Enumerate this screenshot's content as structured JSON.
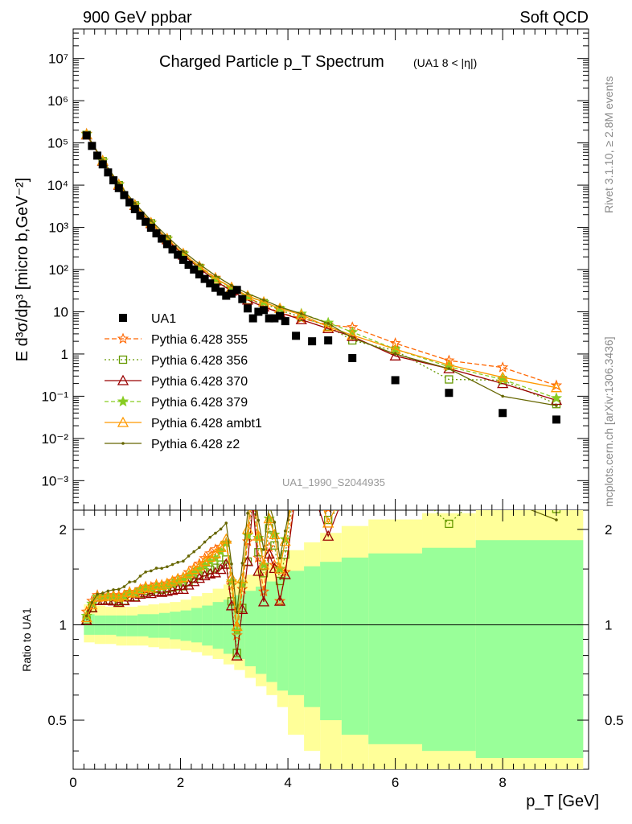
{
  "header": {
    "left": "900 GeV ppbar",
    "right": "Soft QCD"
  },
  "side_labels": {
    "rivet": "Rivet 3.1.10, ≥ 2.8M events",
    "mcplots": "mcplots.cern.ch [arXiv:1306.3436]"
  },
  "chart_data": {
    "type": "scatter",
    "title": "Charged Particle p_T Spectrum",
    "title_qualifier": "(UA1   8 < |η|)",
    "analysis_id": "UA1_1990_S2044935",
    "xlabel": "p_T [GeV]",
    "ylabel": "E d³σ/dp³ [micro b,GeV⁻²]",
    "ratio_ylabel": "Ratio to UA1",
    "xlim": [
      0,
      9.6
    ],
    "ylim": [
      0.0002,
      50000000
    ],
    "y_log": true,
    "ratio_ylim": [
      0.35,
      2.3
    ],
    "ratio_y_log": true,
    "x_ticks": [
      "0",
      "2",
      "4",
      "6",
      "8"
    ],
    "y_ticks": [
      "10⁻³",
      "10⁻²",
      "10⁻¹",
      "1",
      "10",
      "10²",
      "10³",
      "10⁴",
      "10⁵",
      "10⁶",
      "10⁷"
    ],
    "ratio_ticks": [
      "0.5",
      "1",
      "2"
    ],
    "legend_position": "left",
    "data": {
      "name": "UA1",
      "color": "#000000",
      "x": [
        0.25,
        0.35,
        0.45,
        0.55,
        0.65,
        0.75,
        0.85,
        0.95,
        1.05,
        1.15,
        1.25,
        1.35,
        1.45,
        1.55,
        1.65,
        1.75,
        1.85,
        1.95,
        2.05,
        2.15,
        2.25,
        2.35,
        2.45,
        2.55,
        2.65,
        2.75,
        2.85,
        2.95,
        3.05,
        3.15,
        3.25,
        3.35,
        3.45,
        3.55,
        3.65,
        3.75,
        3.85,
        3.95,
        4.15,
        4.45,
        4.75,
        5.2,
        6.0,
        7.0,
        8.0,
        9.0
      ],
      "y": [
        150000,
        85000,
        50000,
        31000,
        20000,
        13000,
        8500,
        5800,
        3900,
        2700,
        1900,
        1350,
        980,
        720,
        540,
        400,
        300,
        225,
        170,
        130,
        100,
        77,
        60,
        47,
        37,
        30,
        24,
        27,
        33,
        20,
        12,
        7,
        10,
        11,
        7,
        7,
        8,
        6,
        2.7,
        2.0,
        2.1,
        0.8,
        0.24,
        0.12,
        0.04,
        0.028
      ]
    },
    "band_x": [
      0.2,
      0.4,
      0.6,
      0.8,
      1.0,
      1.2,
      1.4,
      1.6,
      1.8,
      2.0,
      2.2,
      2.4,
      2.6,
      2.8,
      3.0,
      3.2,
      3.4,
      3.6,
      3.8,
      4.0,
      4.3,
      4.6,
      5.0,
      5.5,
      6.5,
      7.5,
      9.5
    ],
    "band_yellow": [
      [
        0.88,
        1.16
      ],
      [
        0.87,
        1.15
      ],
      [
        0.87,
        1.14
      ],
      [
        0.86,
        1.14
      ],
      [
        0.86,
        1.14
      ],
      [
        0.86,
        1.15
      ],
      [
        0.85,
        1.16
      ],
      [
        0.84,
        1.17
      ],
      [
        0.84,
        1.18
      ],
      [
        0.83,
        1.2
      ],
      [
        0.82,
        1.23
      ],
      [
        0.8,
        1.26
      ],
      [
        0.78,
        1.3
      ],
      [
        0.75,
        1.34
      ],
      [
        0.72,
        1.38
      ],
      [
        0.68,
        1.44
      ],
      [
        0.64,
        1.5
      ],
      [
        0.6,
        1.56
      ],
      [
        0.55,
        1.62
      ],
      [
        0.45,
        1.72
      ],
      [
        0.4,
        1.82
      ],
      [
        0.35,
        1.95
      ],
      [
        0.35,
        2.05
      ],
      [
        0.35,
        2.15
      ],
      [
        0.35,
        2.25
      ],
      [
        0.35,
        2.3
      ]
    ],
    "band_green": [
      [
        0.93,
        1.08
      ],
      [
        0.93,
        1.07
      ],
      [
        0.93,
        1.07
      ],
      [
        0.92,
        1.07
      ],
      [
        0.92,
        1.07
      ],
      [
        0.92,
        1.08
      ],
      [
        0.91,
        1.08
      ],
      [
        0.91,
        1.09
      ],
      [
        0.9,
        1.1
      ],
      [
        0.89,
        1.11
      ],
      [
        0.88,
        1.13
      ],
      [
        0.86,
        1.15
      ],
      [
        0.84,
        1.18
      ],
      [
        0.81,
        1.2
      ],
      [
        0.78,
        1.24
      ],
      [
        0.74,
        1.28
      ],
      [
        0.7,
        1.32
      ],
      [
        0.66,
        1.37
      ],
      [
        0.62,
        1.42
      ],
      [
        0.6,
        1.48
      ],
      [
        0.55,
        1.53
      ],
      [
        0.5,
        1.58
      ],
      [
        0.45,
        1.63
      ],
      [
        0.42,
        1.68
      ],
      [
        0.4,
        1.75
      ],
      [
        0.38,
        1.85
      ]
    ],
    "series": [
      {
        "name": "Pythia 6.428 355",
        "color": "#ff6600",
        "marker": "star",
        "dash": "6,3",
        "x": [
          0.25,
          0.55,
          0.85,
          1.15,
          1.45,
          1.75,
          2.05,
          2.35,
          2.65,
          2.95,
          3.25,
          3.55,
          3.85,
          4.25,
          4.75,
          5.2,
          6.0,
          7.0,
          8.0,
          9.0
        ],
        "y": [
          165000,
          38000,
          10500,
          3400,
          1290,
          540,
          240,
          120,
          64,
          36,
          22,
          14,
          9.5,
          7,
          4.9,
          4.3,
          1.8,
          0.7,
          0.48,
          0.18
        ]
      },
      {
        "name": "Pythia 6.428 356",
        "color": "#669900",
        "marker": "square-open",
        "dash": "2,3",
        "x": [
          0.25,
          0.55,
          0.85,
          1.15,
          1.45,
          1.75,
          2.05,
          2.35,
          2.65,
          2.95,
          3.25,
          3.55,
          3.85,
          4.25,
          4.75,
          5.2,
          6.0,
          7.0,
          8.0,
          9.0
        ],
        "y": [
          155000,
          37000,
          10000,
          3300,
          1250,
          520,
          225,
          110,
          56,
          32,
          19,
          16,
          11,
          7.5,
          4.5,
          2.1,
          1.2,
          0.25,
          0.24,
          0.065
        ]
      },
      {
        "name": "Pythia 6.428 370",
        "color": "#990000",
        "marker": "triangle-open",
        "dash": "",
        "x": [
          0.25,
          0.55,
          0.85,
          1.15,
          1.45,
          1.75,
          2.05,
          2.35,
          2.65,
          2.95,
          3.25,
          3.55,
          3.85,
          4.25,
          4.75,
          5.2,
          6.0,
          7.0,
          8.0,
          9.0
        ],
        "y": [
          155000,
          37000,
          10000,
          3300,
          1230,
          510,
          220,
          108,
          54,
          31,
          19,
          13,
          9.5,
          6.5,
          4.0,
          2.6,
          0.9,
          0.45,
          0.2,
          0.08
        ]
      },
      {
        "name": "Pythia 6.428 379",
        "color": "#88cc22",
        "marker": "star-filled",
        "dash": "5,3",
        "x": [
          0.25,
          0.55,
          0.85,
          1.15,
          1.45,
          1.75,
          2.05,
          2.35,
          2.65,
          2.95,
          3.25,
          3.55,
          3.85,
          4.25,
          4.75,
          5.2,
          6.0,
          7.0,
          8.0,
          9.0
        ],
        "y": [
          160000,
          38000,
          10300,
          3400,
          1270,
          530,
          235,
          115,
          60,
          37,
          23,
          17,
          12,
          9,
          5.5,
          3.3,
          1.3,
          0.5,
          0.25,
          0.09
        ]
      },
      {
        "name": "Pythia 6.428 ambt1",
        "color": "#ff9900",
        "marker": "triangle-open",
        "dash": "",
        "x": [
          0.25,
          0.55,
          0.85,
          1.15,
          1.45,
          1.75,
          2.05,
          2.35,
          2.65,
          2.95,
          3.25,
          3.55,
          3.85,
          4.25,
          4.75,
          5.2,
          6.0,
          7.0,
          8.0,
          9.0
        ],
        "y": [
          158000,
          38000,
          10400,
          3400,
          1280,
          540,
          240,
          118,
          62,
          38,
          24,
          17,
          12,
          8.5,
          4.4,
          2.8,
          1.3,
          0.55,
          0.28,
          0.16
        ]
      },
      {
        "name": "Pythia 6.428 z2",
        "color": "#666600",
        "marker": "dot",
        "dash": "",
        "x": [
          0.25,
          0.55,
          0.85,
          1.15,
          1.45,
          1.75,
          2.05,
          2.35,
          2.65,
          2.95,
          3.25,
          3.55,
          3.85,
          4.25,
          4.75,
          5.2,
          6.0,
          7.0,
          8.0,
          9.0
        ],
        "y": [
          160000,
          39000,
          11000,
          3700,
          1450,
          610,
          270,
          135,
          72,
          42,
          27,
          19,
          13,
          9,
          5.3,
          2.4,
          1.0,
          0.45,
          0.1,
          0.06
        ]
      }
    ]
  }
}
